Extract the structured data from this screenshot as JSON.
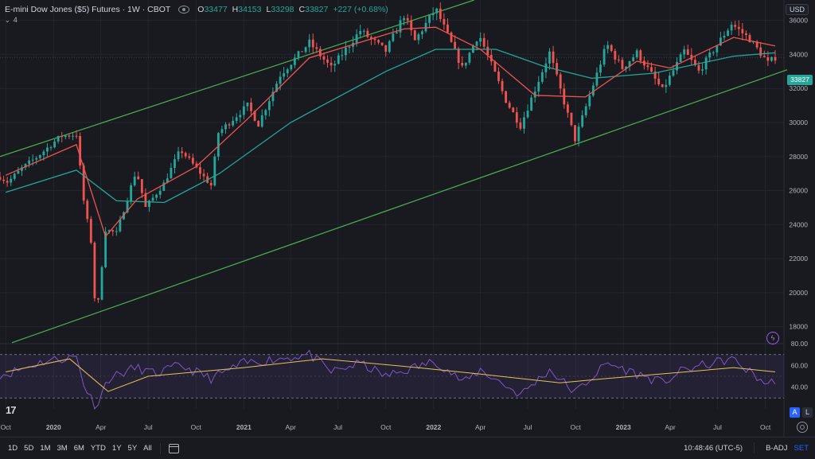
{
  "header": {
    "symbol": "E-mini Dow Jones ($5) Futures · 1W · CBOT",
    "open_label": "O",
    "open": "33477",
    "high_label": "H",
    "high": "34153",
    "low_label": "L",
    "low": "33298",
    "close_label": "C",
    "close": "33827",
    "change": "+227 (+0.68%)",
    "indicator_count": "4",
    "currency": "USD"
  },
  "last_price": "33827",
  "rsi_axis_labels": [
    "80.00",
    "60.00",
    "40.00"
  ],
  "x_tick_labels": [
    "Oct",
    "2020",
    "Apr",
    "Jul",
    "Oct",
    "2021",
    "Apr",
    "Jul",
    "Oct",
    "2022",
    "Apr",
    "Jul",
    "Oct",
    "2023",
    "Apr",
    "Jul",
    "Oct"
  ],
  "bottom": {
    "ranges": [
      "1D",
      "5D",
      "1M",
      "3M",
      "6M",
      "YTD",
      "1Y",
      "5Y",
      "All"
    ],
    "time": "10:48:46 (UTC-5)",
    "badj": "B-ADJ",
    "set": "SET",
    "a": "A",
    "l": "L"
  },
  "colors": {
    "up": "#26a69a",
    "down": "#ef5350",
    "ema_fast": "#ef5350",
    "ema_slow": "#26a69a",
    "channel": "#4caf50",
    "rsi": "#7e57c2",
    "rsi_ma": "#e5c452"
  },
  "chart_data": {
    "type": "candlestick",
    "title": "E-mini Dow Jones ($5) Futures · 1W · CBOT",
    "ylim": [
      17000,
      37200
    ],
    "y_ticks": [
      18000,
      20000,
      22000,
      24000,
      26000,
      28000,
      30000,
      32000,
      34000,
      36000
    ],
    "x_range": [
      "2019-10-01",
      "2023-10-20"
    ],
    "x_ticks": [
      {
        "label": "Oct",
        "date": "2019-10-01"
      },
      {
        "label": "2020",
        "date": "2020-01-01"
      },
      {
        "label": "Apr",
        "date": "2020-04-01"
      },
      {
        "label": "Jul",
        "date": "2020-07-01"
      },
      {
        "label": "Oct",
        "date": "2020-10-01"
      },
      {
        "label": "2021",
        "date": "2021-01-01"
      },
      {
        "label": "Apr",
        "date": "2021-04-01"
      },
      {
        "label": "Jul",
        "date": "2021-07-01"
      },
      {
        "label": "Oct",
        "date": "2021-10-01"
      },
      {
        "label": "2022",
        "date": "2022-01-01"
      },
      {
        "label": "Apr",
        "date": "2022-04-01"
      },
      {
        "label": "Jul",
        "date": "2022-07-01"
      },
      {
        "label": "Oct",
        "date": "2022-10-01"
      },
      {
        "label": "2023",
        "date": "2023-01-01"
      },
      {
        "label": "Apr",
        "date": "2023-04-01"
      },
      {
        "label": "Jul",
        "date": "2023-07-01"
      },
      {
        "label": "Oct",
        "date": "2023-10-01"
      }
    ],
    "price_path": [
      {
        "date": "2019-09-20",
        "close": 26800
      },
      {
        "date": "2019-10-05",
        "close": 26500
      },
      {
        "date": "2019-11-01",
        "close": 27300
      },
      {
        "date": "2019-12-01",
        "close": 28000
      },
      {
        "date": "2020-01-15",
        "close": 29200
      },
      {
        "date": "2020-02-14",
        "close": 29300
      },
      {
        "date": "2020-02-28",
        "close": 25400
      },
      {
        "date": "2020-03-13",
        "close": 23000
      },
      {
        "date": "2020-03-23",
        "close": 18300
      },
      {
        "date": "2020-04-10",
        "close": 23700
      },
      {
        "date": "2020-05-01",
        "close": 23500
      },
      {
        "date": "2020-06-08",
        "close": 27200
      },
      {
        "date": "2020-06-26",
        "close": 25000
      },
      {
        "date": "2020-07-31",
        "close": 26400
      },
      {
        "date": "2020-09-01",
        "close": 28400
      },
      {
        "date": "2020-10-30",
        "close": 26300
      },
      {
        "date": "2020-11-13",
        "close": 29400
      },
      {
        "date": "2021-01-08",
        "close": 31000
      },
      {
        "date": "2021-01-29",
        "close": 29900
      },
      {
        "date": "2021-03-12",
        "close": 32800
      },
      {
        "date": "2021-05-07",
        "close": 34700
      },
      {
        "date": "2021-06-18",
        "close": 33200
      },
      {
        "date": "2021-08-13",
        "close": 35400
      },
      {
        "date": "2021-10-01",
        "close": 34200
      },
      {
        "date": "2021-11-05",
        "close": 36300
      },
      {
        "date": "2021-11-26",
        "close": 34800
      },
      {
        "date": "2022-01-05",
        "close": 36700
      },
      {
        "date": "2022-02-25",
        "close": 33200
      },
      {
        "date": "2022-03-29",
        "close": 35200
      },
      {
        "date": "2022-05-20",
        "close": 31300
      },
      {
        "date": "2022-06-17",
        "close": 29800
      },
      {
        "date": "2022-08-12",
        "close": 34100
      },
      {
        "date": "2022-09-30",
        "close": 29000
      },
      {
        "date": "2022-11-30",
        "close": 34600
      },
      {
        "date": "2022-12-30",
        "close": 33200
      },
      {
        "date": "2023-01-27",
        "close": 34100
      },
      {
        "date": "2023-03-17",
        "close": 31900
      },
      {
        "date": "2023-04-28",
        "close": 34200
      },
      {
        "date": "2023-05-26",
        "close": 33000
      },
      {
        "date": "2023-07-28",
        "close": 35800
      },
      {
        "date": "2023-09-01",
        "close": 34900
      },
      {
        "date": "2023-10-06",
        "close": 33500
      },
      {
        "date": "2023-10-20",
        "close": 33827
      }
    ],
    "ema_fast_path": [
      {
        "date": "2019-10-01",
        "value": 26900
      },
      {
        "date": "2020-02-14",
        "value": 28700
      },
      {
        "date": "2020-04-10",
        "value": 23300
      },
      {
        "date": "2020-06-10",
        "value": 25500
      },
      {
        "date": "2020-10-01",
        "value": 27400
      },
      {
        "date": "2021-01-08",
        "value": 30200
      },
      {
        "date": "2021-05-07",
        "value": 33800
      },
      {
        "date": "2021-11-05",
        "value": 35500
      },
      {
        "date": "2022-01-05",
        "value": 35600
      },
      {
        "date": "2022-04-01",
        "value": 34300
      },
      {
        "date": "2022-07-15",
        "value": 31600
      },
      {
        "date": "2022-10-20",
        "value": 31500
      },
      {
        "date": "2023-01-27",
        "value": 33600
      },
      {
        "date": "2023-04-01",
        "value": 33200
      },
      {
        "date": "2023-08-01",
        "value": 35000
      },
      {
        "date": "2023-10-20",
        "value": 34500
      }
    ],
    "ema_slow_path": [
      {
        "date": "2019-10-01",
        "value": 25900
      },
      {
        "date": "2020-02-14",
        "value": 27200
      },
      {
        "date": "2020-05-01",
        "value": 25400
      },
      {
        "date": "2020-08-01",
        "value": 25300
      },
      {
        "date": "2020-11-15",
        "value": 27000
      },
      {
        "date": "2021-04-01",
        "value": 30000
      },
      {
        "date": "2021-10-01",
        "value": 33000
      },
      {
        "date": "2022-01-05",
        "value": 34300
      },
      {
        "date": "2022-05-01",
        "value": 34300
      },
      {
        "date": "2022-08-01",
        "value": 33300
      },
      {
        "date": "2022-11-01",
        "value": 32600
      },
      {
        "date": "2023-03-01",
        "value": 32900
      },
      {
        "date": "2023-08-01",
        "value": 33900
      },
      {
        "date": "2023-10-20",
        "value": 34100
      }
    ],
    "channel_upper": [
      {
        "date": "2019-09-20",
        "value": 28000
      },
      {
        "date": "2022-03-20",
        "value": 37200
      }
    ],
    "channel_lower": [
      {
        "date": "2019-09-20",
        "value": 17100
      },
      {
        "date": "2023-10-20",
        "value": 33100
      }
    ],
    "rsi": {
      "ylim": [
        20,
        80
      ],
      "bands": [
        70,
        30
      ],
      "ticks": [
        80,
        60,
        40
      ],
      "rsi_path": [
        {
          "date": "2019-10-01",
          "value": 52
        },
        {
          "date": "2019-12-15",
          "value": 64
        },
        {
          "date": "2020-02-14",
          "value": 68
        },
        {
          "date": "2020-03-01",
          "value": 40
        },
        {
          "date": "2020-03-23",
          "value": 22
        },
        {
          "date": "2020-04-15",
          "value": 48
        },
        {
          "date": "2020-06-08",
          "value": 58
        },
        {
          "date": "2020-07-15",
          "value": 52
        },
        {
          "date": "2020-09-01",
          "value": 60
        },
        {
          "date": "2020-10-30",
          "value": 48
        },
        {
          "date": "2021-01-01",
          "value": 62
        },
        {
          "date": "2021-05-07",
          "value": 70
        },
        {
          "date": "2021-06-18",
          "value": 54
        },
        {
          "date": "2021-08-13",
          "value": 62
        },
        {
          "date": "2021-10-01",
          "value": 50
        },
        {
          "date": "2022-01-05",
          "value": 64
        },
        {
          "date": "2022-03-01",
          "value": 44
        },
        {
          "date": "2022-04-01",
          "value": 56
        },
        {
          "date": "2022-06-17",
          "value": 33
        },
        {
          "date": "2022-08-12",
          "value": 56
        },
        {
          "date": "2022-09-30",
          "value": 35
        },
        {
          "date": "2022-12-01",
          "value": 62
        },
        {
          "date": "2023-03-17",
          "value": 44
        },
        {
          "date": "2023-04-28",
          "value": 56
        },
        {
          "date": "2023-07-28",
          "value": 66
        },
        {
          "date": "2023-10-06",
          "value": 42
        },
        {
          "date": "2023-10-20",
          "value": 47
        }
      ],
      "ma_path": [
        {
          "date": "2019-10-01",
          "value": 54
        },
        {
          "date": "2020-02-01",
          "value": 66
        },
        {
          "date": "2020-04-15",
          "value": 36
        },
        {
          "date": "2020-07-01",
          "value": 50
        },
        {
          "date": "2021-01-01",
          "value": 58
        },
        {
          "date": "2021-06-01",
          "value": 66
        },
        {
          "date": "2021-12-01",
          "value": 58
        },
        {
          "date": "2022-04-01",
          "value": 52
        },
        {
          "date": "2022-09-01",
          "value": 44
        },
        {
          "date": "2022-12-01",
          "value": 48
        },
        {
          "date": "2023-05-01",
          "value": 54
        },
        {
          "date": "2023-08-01",
          "value": 58
        },
        {
          "date": "2023-10-20",
          "value": 54
        }
      ]
    }
  }
}
